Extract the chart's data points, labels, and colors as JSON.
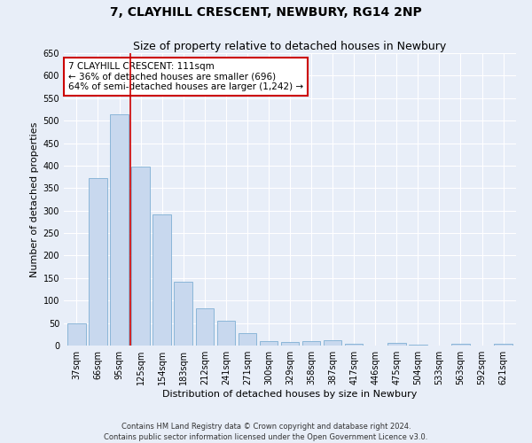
{
  "title1": "7, CLAYHILL CRESCENT, NEWBURY, RG14 2NP",
  "title2": "Size of property relative to detached houses in Newbury",
  "xlabel": "Distribution of detached houses by size in Newbury",
  "ylabel": "Number of detached properties",
  "categories": [
    "37sqm",
    "66sqm",
    "95sqm",
    "125sqm",
    "154sqm",
    "183sqm",
    "212sqm",
    "241sqm",
    "271sqm",
    "300sqm",
    "329sqm",
    "358sqm",
    "387sqm",
    "417sqm",
    "446sqm",
    "475sqm",
    "504sqm",
    "533sqm",
    "563sqm",
    "592sqm",
    "621sqm"
  ],
  "values": [
    50,
    373,
    515,
    397,
    291,
    142,
    82,
    55,
    28,
    10,
    7,
    10,
    12,
    4,
    0,
    5,
    1,
    0,
    4,
    0,
    4
  ],
  "bar_color": "#c8d8ee",
  "bar_edge_color": "#7fafd4",
  "vline_color": "#cc0000",
  "vline_pos": 2.5,
  "ylim": [
    0,
    650
  ],
  "yticks": [
    0,
    50,
    100,
    150,
    200,
    250,
    300,
    350,
    400,
    450,
    500,
    550,
    600,
    650
  ],
  "annotation_text": "7 CLAYHILL CRESCENT: 111sqm\n← 36% of detached houses are smaller (696)\n64% of semi-detached houses are larger (1,242) →",
  "annotation_box_color": "#ffffff",
  "annotation_box_edge": "#cc0000",
  "footer1": "Contains HM Land Registry data © Crown copyright and database right 2024.",
  "footer2": "Contains public sector information licensed under the Open Government Licence v3.0.",
  "background_color": "#e8eef8",
  "grid_color": "#ffffff",
  "title1_fontsize": 10,
  "title2_fontsize": 9,
  "tick_fontsize": 7,
  "ylabel_fontsize": 8,
  "xlabel_fontsize": 8,
  "annotation_fontsize": 7.5
}
